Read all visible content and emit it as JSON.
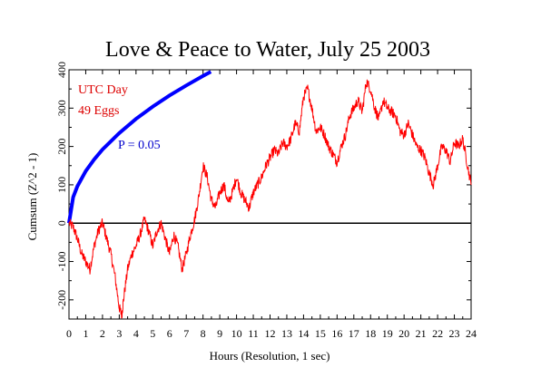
{
  "chart_data": {
    "type": "line",
    "title": "Love & Peace to Water, July 25 2003",
    "xlabel": "Hours (Resolution, 1 sec)",
    "ylabel": "Cumsum (Z^2 - 1)",
    "xlim": [
      0,
      24
    ],
    "ylim": [
      -250,
      400
    ],
    "x_ticks": [
      0,
      1,
      2,
      3,
      4,
      5,
      6,
      7,
      8,
      9,
      10,
      11,
      12,
      13,
      14,
      15,
      16,
      17,
      18,
      19,
      20,
      21,
      22,
      23,
      24
    ],
    "x_tick_labels": [
      "0",
      "1",
      "2",
      "3",
      "4",
      "5",
      "6",
      "7",
      "8",
      "9",
      "10",
      "11",
      "12",
      "13",
      "14",
      "15",
      "16",
      "17",
      "18",
      "19",
      "20",
      "21",
      "22",
      "23",
      "24"
    ],
    "y_ticks": [
      -200,
      -100,
      0,
      100,
      200,
      300,
      400
    ],
    "y_tick_labels": [
      "-200",
      "-100",
      "0",
      "100",
      "200",
      "300",
      "400"
    ],
    "annotations": [
      "UTC Day",
      "49 Eggs",
      "P = 0.05"
    ],
    "grid": false,
    "colors": {
      "series": "#ff0000",
      "probability": "#0000ff",
      "zero_line": "#000000",
      "annotation_red": "#dd0000",
      "annotation_blue": "#0000cc"
    },
    "series": [
      {
        "color": "#ff0000",
        "x": [
          0,
          0.25,
          0.5,
          0.75,
          1.0,
          1.25,
          1.5,
          1.75,
          2.0,
          2.25,
          2.5,
          2.75,
          3.0,
          3.15,
          3.25,
          3.5,
          3.75,
          4.0,
          4.25,
          4.5,
          4.75,
          5.0,
          5.25,
          5.5,
          5.75,
          6.0,
          6.25,
          6.5,
          6.75,
          7.0,
          7.25,
          7.5,
          7.75,
          8.0,
          8.25,
          8.5,
          8.75,
          9.0,
          9.25,
          9.5,
          9.75,
          10.0,
          10.25,
          10.5,
          10.75,
          11.0,
          11.25,
          11.5,
          11.75,
          12.0,
          12.25,
          12.5,
          12.75,
          13.0,
          13.25,
          13.5,
          13.75,
          14.0,
          14.25,
          14.5,
          14.75,
          15.0,
          15.25,
          15.5,
          15.75,
          16.0,
          16.25,
          16.5,
          16.75,
          17.0,
          17.25,
          17.5,
          17.75,
          18.0,
          18.25,
          18.5,
          18.75,
          19.0,
          19.25,
          19.5,
          19.75,
          20.0,
          20.25,
          20.5,
          20.75,
          21.0,
          21.25,
          21.5,
          21.75,
          22.0,
          22.25,
          22.5,
          22.75,
          23.0,
          23.25,
          23.5,
          23.75,
          24.0
        ],
        "values": [
          0,
          -10,
          -40,
          -80,
          -100,
          -120,
          -60,
          -20,
          0,
          -40,
          -80,
          -140,
          -220,
          -240,
          -200,
          -120,
          -80,
          -60,
          -30,
          10,
          -20,
          -60,
          -20,
          0,
          -40,
          -80,
          -30,
          -60,
          -120,
          -80,
          -30,
          10,
          70,
          150,
          120,
          60,
          40,
          80,
          100,
          50,
          80,
          120,
          80,
          60,
          40,
          80,
          100,
          120,
          150,
          170,
          190,
          180,
          210,
          200,
          220,
          260,
          240,
          330,
          350,
          300,
          240,
          250,
          230,
          200,
          180,
          160,
          200,
          230,
          280,
          300,
          320,
          290,
          370,
          350,
          300,
          270,
          320,
          300,
          290,
          280,
          240,
          230,
          260,
          230,
          200,
          190,
          170,
          130,
          100,
          150,
          200,
          190,
          160,
          210,
          200,
          220,
          160,
          100
        ]
      },
      {
        "name": "P = 0.05",
        "color": "#0000ff",
        "x": [
          0,
          0.25,
          0.5,
          1,
          1.5,
          2,
          3,
          4,
          5,
          6,
          7,
          8,
          8.47
        ],
        "values": [
          0,
          68,
          96,
          136,
          166,
          192,
          235,
          272,
          304,
          333,
          359,
          384,
          395
        ]
      }
    ]
  }
}
